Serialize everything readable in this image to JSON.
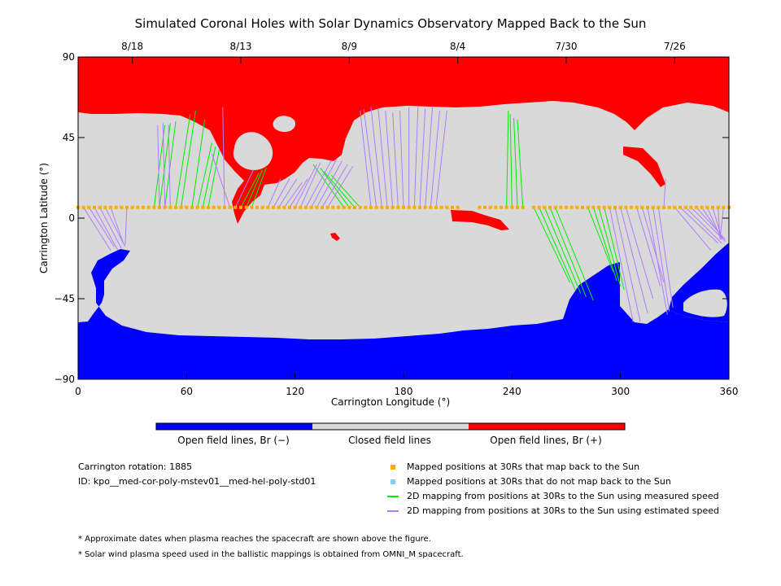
{
  "chart_data": {
    "type": "heatmap",
    "title": "Simulated Coronal Holes with Solar Dynamics Observatory Mapped Back to the Sun",
    "xlabel": "Carrington Longitude (°)",
    "ylabel": "Carrington Latitude (°)",
    "xlim": [
      0,
      360
    ],
    "ylim": [
      -90,
      90
    ],
    "x_ticks": [
      "0",
      "60",
      "120",
      "180",
      "240",
      "300",
      "360"
    ],
    "y_ticks": [
      "90",
      "45",
      "0",
      "−45",
      "−90"
    ],
    "top_axis_dates": [
      {
        "label": "8/18",
        "lon": 30
      },
      {
        "label": "8/13",
        "lon": 90
      },
      {
        "label": "8/9",
        "lon": 150
      },
      {
        "label": "8/4",
        "lon": 210
      },
      {
        "label": "7/30",
        "lon": 270
      },
      {
        "label": "7/26",
        "lon": 330
      }
    ],
    "colorbar": [
      {
        "label": "Open field lines, Br (−)",
        "color": "#0000ff"
      },
      {
        "label": "Closed field lines",
        "color": "#d9d9d9"
      },
      {
        "label": "Open field lines, Br (+)",
        "color": "#ff0000"
      }
    ],
    "mapped_positions_latitude": 6,
    "mapped_positions_lon": [
      0,
      3,
      6,
      9,
      12,
      15,
      18,
      21,
      24,
      27,
      30,
      33,
      36,
      39,
      42,
      45,
      48,
      51,
      54,
      57,
      60,
      63,
      66,
      69,
      72,
      75,
      78,
      81,
      84,
      87,
      90,
      93,
      96,
      99,
      102,
      105,
      108,
      111,
      114,
      117,
      120,
      123,
      126,
      129,
      132,
      135,
      138,
      141,
      144,
      147,
      150,
      153,
      156,
      159,
      162,
      165,
      168,
      171,
      174,
      177,
      180,
      183,
      186,
      189,
      192,
      195,
      198,
      201,
      204,
      207,
      210,
      222,
      225,
      228,
      231,
      234,
      237,
      240,
      243,
      246,
      252,
      255,
      258,
      261,
      264,
      267,
      270,
      273,
      276,
      279,
      282,
      285,
      288,
      291,
      294,
      297,
      300,
      303,
      306,
      309,
      312,
      315,
      318,
      321,
      324,
      327,
      330,
      333,
      336,
      339,
      342,
      345,
      348,
      351,
      354,
      357,
      360
    ],
    "green_mappings": [
      [
        42,
        6,
        48,
        52
      ],
      [
        45,
        6,
        51,
        53
      ],
      [
        48,
        6,
        54,
        54
      ],
      [
        54,
        6,
        62,
        58
      ],
      [
        57,
        6,
        65,
        60
      ],
      [
        63,
        6,
        70,
        55
      ],
      [
        66,
        6,
        74,
        42
      ],
      [
        69,
        6,
        76,
        40
      ],
      [
        72,
        6,
        78,
        38
      ],
      [
        90,
        6,
        100,
        25
      ],
      [
        93,
        6,
        102,
        27
      ],
      [
        96,
        6,
        104,
        28
      ],
      [
        147,
        6,
        130,
        30
      ],
      [
        150,
        6,
        134,
        28
      ],
      [
        153,
        6,
        136,
        26
      ],
      [
        156,
        6,
        140,
        24
      ],
      [
        237,
        6,
        238,
        60
      ],
      [
        240,
        6,
        239,
        58
      ],
      [
        243,
        6,
        241,
        56
      ],
      [
        246,
        6,
        243,
        55
      ],
      [
        252,
        6,
        272,
        -36
      ],
      [
        255,
        6,
        275,
        -40
      ],
      [
        258,
        6,
        278,
        -42
      ],
      [
        261,
        6,
        281,
        -44
      ],
      [
        264,
        6,
        285,
        -46
      ],
      [
        282,
        6,
        296,
        -30
      ],
      [
        285,
        6,
        298,
        -35
      ],
      [
        288,
        6,
        300,
        -38
      ],
      [
        291,
        6,
        302,
        -40
      ]
    ],
    "purple_mappings": [
      [
        3,
        6,
        18,
        -18
      ],
      [
        6,
        6,
        20,
        -16
      ],
      [
        9,
        6,
        22,
        -18
      ],
      [
        12,
        6,
        24,
        -17
      ],
      [
        15,
        6,
        26,
        -16
      ],
      [
        18,
        6,
        25,
        -14
      ],
      [
        27,
        6,
        26,
        -15
      ],
      [
        45,
        6,
        44,
        52
      ],
      [
        48,
        6,
        47,
        53
      ],
      [
        51,
        6,
        50,
        52
      ],
      [
        81,
        6,
        80,
        62
      ],
      [
        84,
        6,
        74,
        36
      ],
      [
        87,
        6,
        97,
        27
      ],
      [
        105,
        6,
        112,
        22
      ],
      [
        108,
        6,
        117,
        22
      ],
      [
        111,
        6,
        121,
        22
      ],
      [
        114,
        6,
        124,
        20
      ],
      [
        117,
        6,
        127,
        22
      ],
      [
        120,
        6,
        132,
        30
      ],
      [
        123,
        6,
        134,
        31
      ],
      [
        126,
        6,
        140,
        32
      ],
      [
        129,
        6,
        143,
        33
      ],
      [
        132,
        6,
        146,
        32
      ],
      [
        135,
        6,
        149,
        30
      ],
      [
        138,
        6,
        152,
        29
      ],
      [
        162,
        6,
        156,
        60
      ],
      [
        165,
        6,
        158,
        61
      ],
      [
        168,
        6,
        162,
        62
      ],
      [
        171,
        6,
        166,
        61
      ],
      [
        174,
        6,
        170,
        60
      ],
      [
        177,
        6,
        174,
        59
      ],
      [
        180,
        6,
        178,
        60
      ],
      [
        183,
        6,
        183,
        62
      ],
      [
        186,
        6,
        188,
        62
      ],
      [
        189,
        6,
        192,
        61
      ],
      [
        192,
        6,
        196,
        62
      ],
      [
        195,
        6,
        200,
        60
      ],
      [
        198,
        6,
        204,
        60
      ],
      [
        294,
        6,
        307,
        -58
      ],
      [
        297,
        6,
        311,
        -58
      ],
      [
        300,
        6,
        315,
        -53
      ],
      [
        303,
        6,
        318,
        -45
      ],
      [
        309,
        6,
        322,
        -38
      ],
      [
        312,
        6,
        324,
        -36
      ],
      [
        315,
        6,
        326,
        -54
      ],
      [
        318,
        6,
        327,
        -52
      ],
      [
        321,
        6,
        329,
        -50
      ],
      [
        324,
        6,
        325,
        22
      ],
      [
        330,
        6,
        350,
        -18
      ],
      [
        333,
        6,
        354,
        -14
      ],
      [
        336,
        6,
        356,
        -14
      ],
      [
        339,
        6,
        358,
        -13
      ],
      [
        342,
        6,
        358,
        -12
      ],
      [
        345,
        6,
        357,
        -12
      ],
      [
        348,
        6,
        356,
        -12
      ],
      [
        351,
        6,
        356,
        -11
      ],
      [
        354,
        6,
        355,
        -11
      ],
      [
        357,
        6,
        355,
        -12
      ]
    ],
    "legend_placement": "bottom",
    "grid": false
  },
  "legend": {
    "mapped_back": "Mapped positions at 30Rs that map back to the Sun",
    "not_mapped": "Mapped positions at 30Rs that do not map back to the Sun",
    "measured": "2D mapping from positions at 30Rs to the Sun using measured speed",
    "estimated": "2D mapping from positions at 30Rs to the Sun using estimated speed",
    "colors": {
      "mapped_back": "#ffaa00",
      "not_mapped": "#87cefa",
      "measured": "#00ee00",
      "estimated": "#b07cff"
    }
  },
  "info": {
    "rotation": "Carrington rotation: 1885",
    "id": "ID: kpo__med-cor-poly-mstev01__med-hel-poly-std01"
  },
  "notes": {
    "dates": "* Approximate dates when plasma reaches the spacecraft are shown above the figure.",
    "speed": "* Solar wind plasma speed used in the ballistic mappings is obtained from OMNI_M spacecraft."
  }
}
